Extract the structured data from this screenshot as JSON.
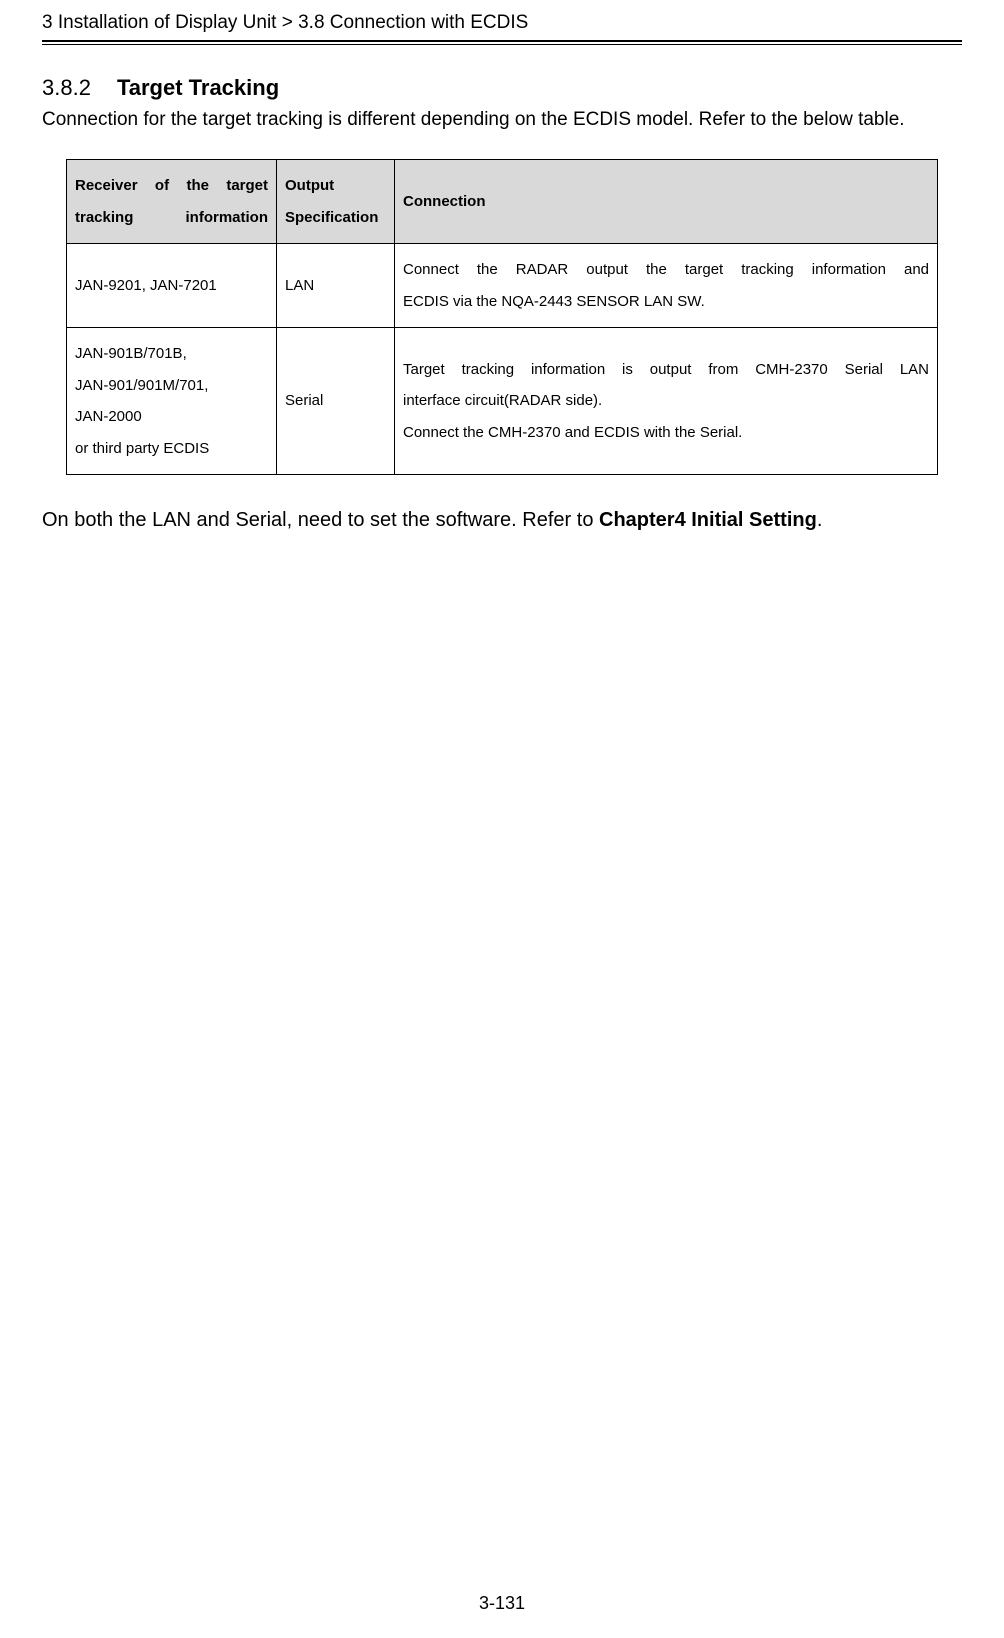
{
  "header_path": "3 Installation of Display Unit > 3.8 Connection with ECDIS",
  "section": {
    "number": "3.8.2",
    "title": "Target Tracking",
    "intro": "Connection for the target tracking is different depending on the ECDIS model. Refer to the below table."
  },
  "table": {
    "header_bg": "#d9d9d9",
    "border_color": "#000000",
    "columns": {
      "receiver": "Receiver of the target tracking information",
      "output": "Output Specification",
      "connection": "Connection"
    },
    "rows": [
      {
        "receiver": "JAN-9201, JAN-7201",
        "output": "LAN",
        "connection": "Connect the RADAR output the target tracking information and ECDIS via the NQA-2443 SENSOR LAN SW."
      },
      {
        "receiver_lines": [
          "JAN-901B/701B,",
          "JAN-901/901M/701,",
          "JAN-2000",
          "or third party ECDIS"
        ],
        "output": "Serial",
        "connection_line1": "Target tracking information is output from CMH-2370 Serial LAN interface circuit(RADAR side).",
        "connection_line2": "Connect the CMH-2370 and ECDIS with the Serial."
      }
    ]
  },
  "footnote_pre": "On both the LAN and Serial, need to set the software. Refer to ",
  "footnote_bold": "Chapter4 Initial Setting",
  "footnote_post": ".",
  "page_number": "3-131"
}
